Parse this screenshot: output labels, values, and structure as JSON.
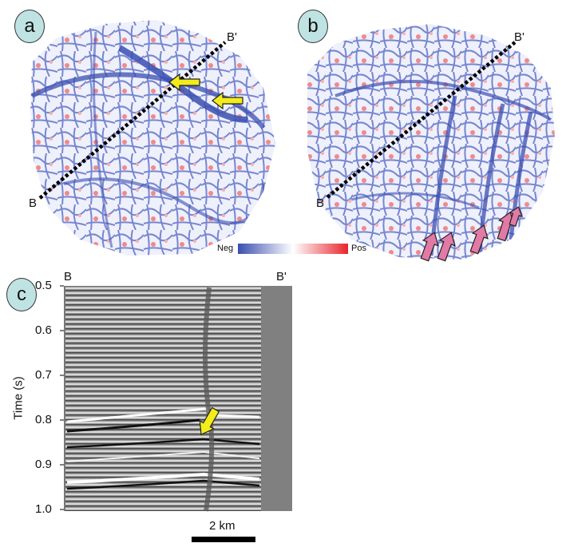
{
  "panels": {
    "a": {
      "label": "a",
      "line_start": "B",
      "line_end": "B'"
    },
    "b": {
      "label": "b",
      "line_start": "B",
      "line_end": "B'"
    },
    "c": {
      "label": "c",
      "line_start": "B",
      "line_end": "B'"
    }
  },
  "colorbar": {
    "neg": "Neg",
    "pos": "Pos",
    "neg_color": "#3a4fb0",
    "pos_color": "#e8252b"
  },
  "section": {
    "ylabel": "Time (s)",
    "yticks": [
      "0.5",
      "0.6",
      "0.7",
      "0.8",
      "0.9",
      "1.0"
    ],
    "scalebar": "2 km"
  },
  "colors": {
    "arrow_yellow": "#f2ec1a",
    "arrow_pink": "#e27aa6",
    "badge": "#bfe3e3",
    "network": "#3a4fb0"
  }
}
